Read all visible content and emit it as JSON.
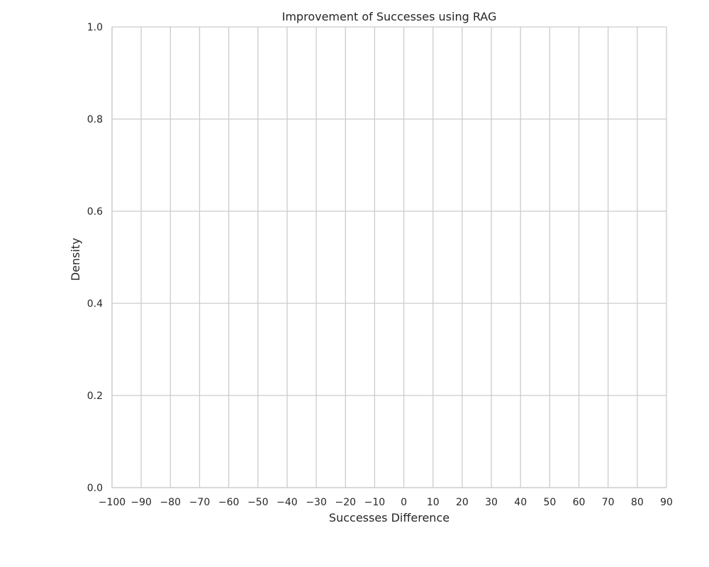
{
  "chart_data": {
    "type": "area",
    "title": "Improvement of Successes using RAG",
    "xlabel": "Successes Difference",
    "ylabel": "Density",
    "xlim": [
      -100,
      90
    ],
    "ylim": [
      0.0,
      1.0
    ],
    "x_ticks": [
      -100,
      -90,
      -80,
      -70,
      -60,
      -50,
      -40,
      -30,
      -20,
      -10,
      0,
      10,
      20,
      30,
      40,
      50,
      60,
      70,
      80,
      90
    ],
    "x_tick_labels": [
      "−100",
      "−90",
      "−80",
      "−70",
      "−60",
      "−50",
      "−40",
      "−30",
      "−20",
      "−10",
      "0",
      "10",
      "20",
      "30",
      "40",
      "50",
      "60",
      "70",
      "80",
      "90"
    ],
    "y_ticks": [
      0.0,
      0.2,
      0.4,
      0.6,
      0.8,
      1.0
    ],
    "y_tick_labels": [
      "0.0",
      "0.2",
      "0.4",
      "0.6",
      "0.8",
      "1.0"
    ],
    "grid": true,
    "series": []
  }
}
